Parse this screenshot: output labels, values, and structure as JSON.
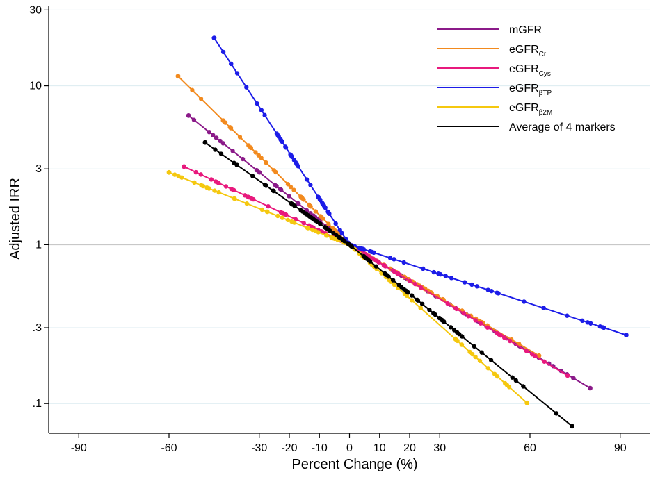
{
  "chart_data": {
    "type": "line",
    "xlabel": "Percent Change (%)",
    "ylabel": "Adjusted IRR",
    "x_scale": "linear",
    "y_scale": "log",
    "xlim": [
      -100,
      100
    ],
    "ylim": [
      0.065,
      32
    ],
    "x_ticks": [
      {
        "value": -90,
        "label": "-90"
      },
      {
        "value": -60,
        "label": "-60"
      },
      {
        "value": -30,
        "label": "-30"
      },
      {
        "value": -20,
        "label": "-20"
      },
      {
        "value": -10,
        "label": "-10"
      },
      {
        "value": 0,
        "label": "0"
      },
      {
        "value": 10,
        "label": "10"
      },
      {
        "value": 20,
        "label": "20"
      },
      {
        "value": 30,
        "label": "30"
      },
      {
        "value": 60,
        "label": "60"
      },
      {
        "value": 90,
        "label": "90"
      }
    ],
    "y_ticks": [
      {
        "value": 30,
        "label": "30"
      },
      {
        "value": 10,
        "label": "10"
      },
      {
        "value": 3,
        "label": "3"
      },
      {
        "value": 1,
        "label": "1"
      },
      {
        "value": 0.3,
        "label": ".3"
      },
      {
        "value": 0.1,
        "label": ".1"
      }
    ],
    "grid": true,
    "legend_position": "top-right",
    "series": [
      {
        "name_main": "mGFR",
        "name_sub": "",
        "color": "#8B1A89",
        "x_start": -53.5,
        "y_start": 6.5,
        "x_end": 80,
        "y_end": 0.125
      },
      {
        "name_main": "eGFR",
        "name_sub": "Cr",
        "color": "#F28A1E",
        "x_start": -57,
        "y_start": 11.5,
        "x_end": 63,
        "y_end": 0.2
      },
      {
        "name_main": "eGFR",
        "name_sub": "Cys",
        "color": "#E8197D",
        "x_start": -55,
        "y_start": 3.1,
        "x_end": 72.5,
        "y_end": 0.15
      },
      {
        "name_main": "eGFR",
        "name_sub": "βTP",
        "color": "#1C1CE8",
        "x_start": -45,
        "y_start": 20,
        "x_end": 92,
        "y_end": 0.27
      },
      {
        "name_main": "eGFR",
        "name_sub": "β2M",
        "color": "#F5C80F",
        "x_start": -60,
        "y_start": 2.85,
        "x_end": 59,
        "y_end": 0.101
      },
      {
        "name_main": "Average of 4 markers",
        "name_sub": "",
        "color": "#000000",
        "x_start": -48,
        "y_start": 4.4,
        "x_end": 74,
        "y_end": 0.072
      }
    ]
  }
}
